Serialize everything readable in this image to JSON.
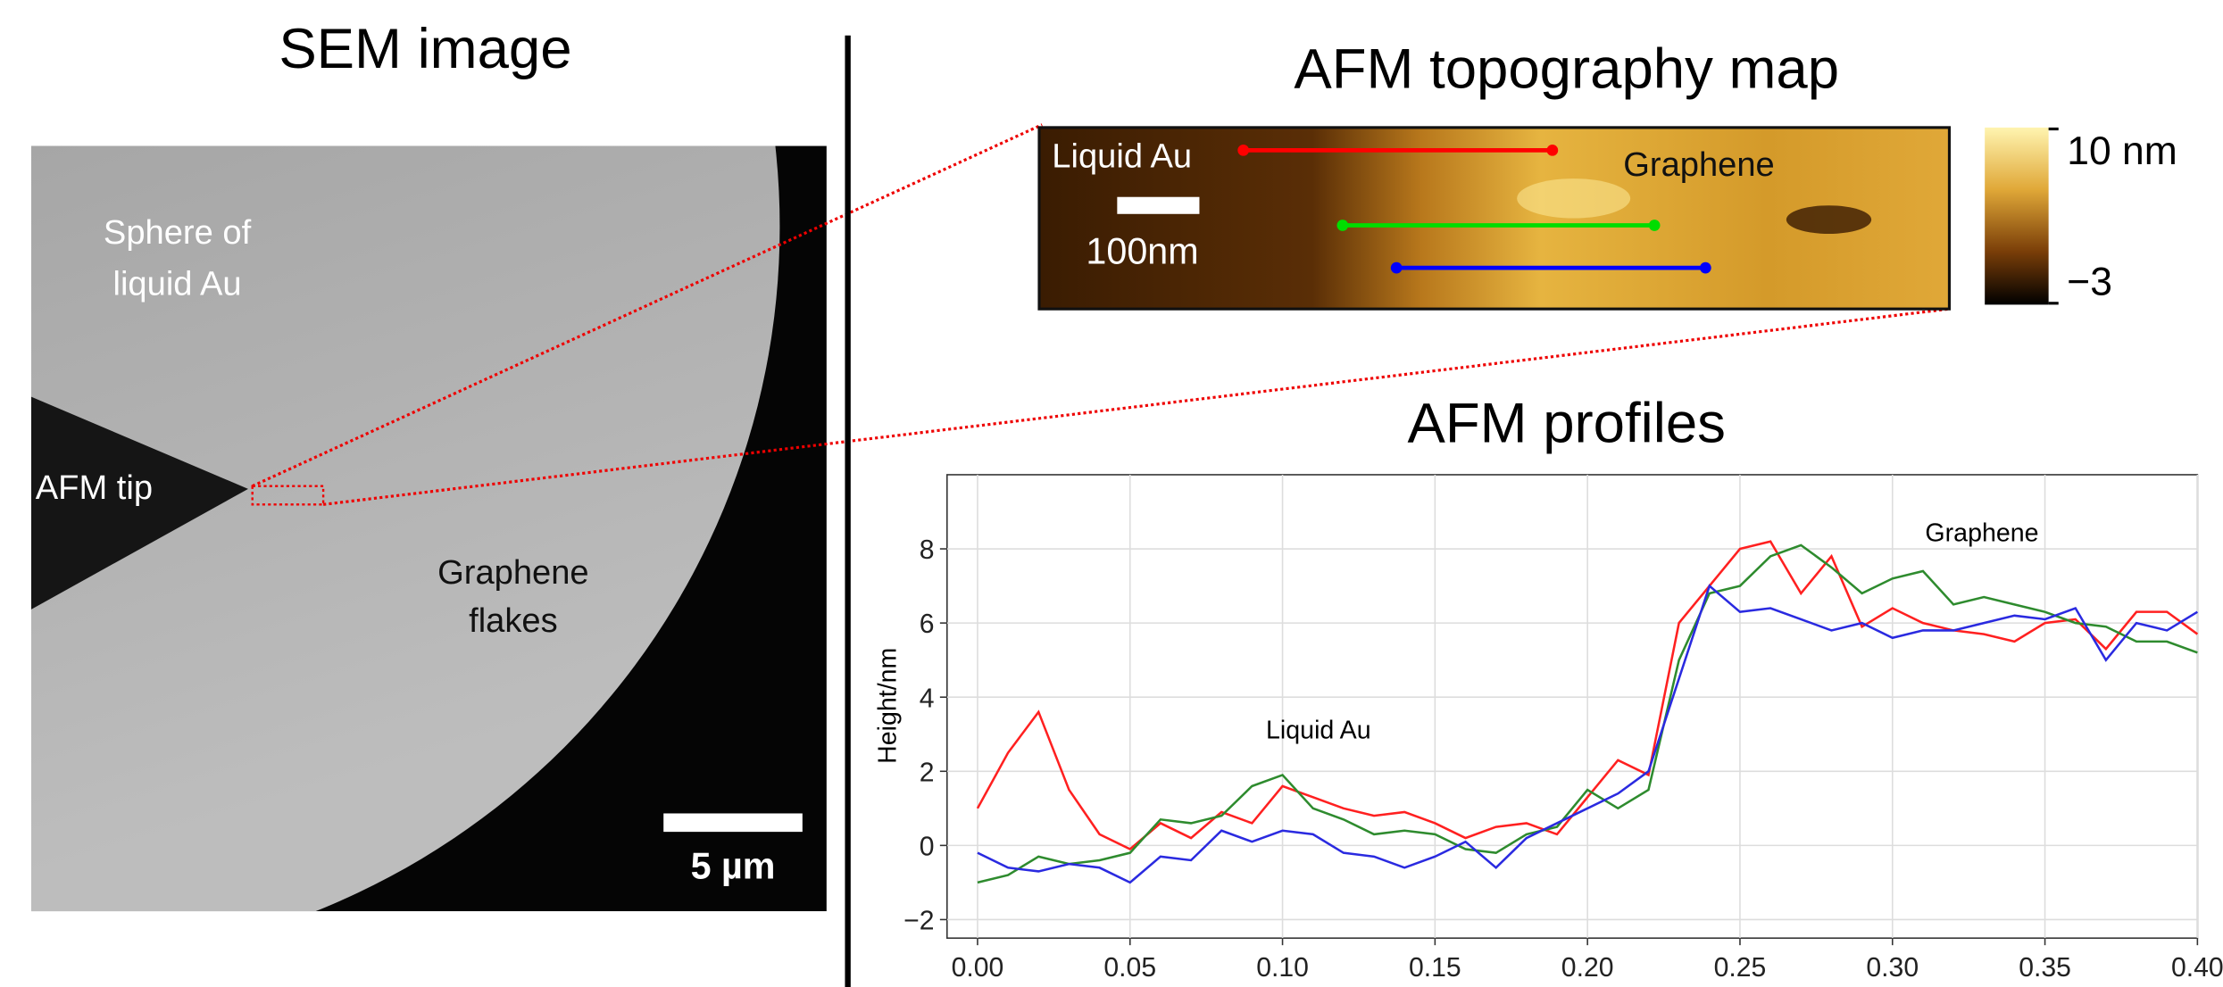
{
  "sem": {
    "title": "SEM image",
    "labels": [
      "Sphere of",
      "liquid Au",
      "AFM tip",
      "Graphene",
      "flakes"
    ],
    "scale_bar": "5 µm"
  },
  "afm_map": {
    "title": "AFM topography map",
    "labels": [
      "Liquid Au",
      "100nm",
      "Graphene"
    ],
    "colorbar_labels": [
      "10 nm",
      "−3"
    ]
  },
  "chart_data": {
    "type": "line",
    "title": "AFM profiles",
    "y_label": "Height/nm",
    "annotations": [
      "Graphene",
      "Liquid Au"
    ],
    "x": [
      0,
      0.01,
      0.02,
      0.03,
      0.04,
      0.05,
      0.06,
      0.07,
      0.08,
      0.09,
      0.1,
      0.11,
      0.12,
      0.13,
      0.14,
      0.15,
      0.16,
      0.17,
      0.18,
      0.19,
      0.2,
      0.21,
      0.22,
      0.23,
      0.24,
      0.25,
      0.26,
      0.27,
      0.28,
      0.29,
      0.3,
      0.31,
      0.32,
      0.33,
      0.34,
      0.35,
      0.36,
      0.37,
      0.38,
      0.39,
      0.4
    ],
    "series": [
      {
        "color": "#ff2020",
        "values": [
          1.0,
          2.5,
          3.6,
          1.5,
          0.3,
          -0.1,
          0.6,
          0.2,
          0.9,
          0.6,
          1.6,
          1.3,
          1.0,
          0.8,
          0.9,
          0.6,
          0.2,
          0.5,
          0.6,
          0.3,
          1.3,
          2.3,
          1.9,
          6.0,
          7.0,
          8.0,
          8.2,
          6.8,
          7.8,
          5.9,
          6.4,
          6.0,
          5.8,
          5.7,
          5.5,
          6.0,
          6.1,
          5.3,
          6.3,
          6.3,
          5.7
        ]
      },
      {
        "color": "#2e8b2e",
        "values": [
          -1.0,
          -0.8,
          -0.3,
          -0.5,
          -0.4,
          -0.2,
          0.7,
          0.6,
          0.8,
          1.6,
          1.9,
          1.0,
          0.7,
          0.3,
          0.4,
          0.3,
          -0.1,
          -0.2,
          0.3,
          0.5,
          1.5,
          1.0,
          1.5,
          5.0,
          6.8,
          7.0,
          7.8,
          8.1,
          7.5,
          6.8,
          7.2,
          7.4,
          6.5,
          6.7,
          6.5,
          6.3,
          6.0,
          5.9,
          5.5,
          5.5,
          5.2
        ]
      },
      {
        "color": "#2a2ae0",
        "values": [
          -0.2,
          -0.6,
          -0.7,
          -0.5,
          -0.6,
          -1.0,
          -0.3,
          -0.4,
          0.4,
          0.1,
          0.4,
          0.3,
          -0.2,
          -0.3,
          -0.6,
          -0.3,
          0.1,
          -0.6,
          0.2,
          0.6,
          1.0,
          1.4,
          2.0,
          4.5,
          7.0,
          6.3,
          6.4,
          6.1,
          5.8,
          6.0,
          5.6,
          5.8,
          5.8,
          6.0,
          6.2,
          6.1,
          6.4,
          5.0,
          6.0,
          5.8,
          6.3
        ]
      }
    ],
    "xlim": [
      -0.01,
      0.4
    ],
    "ylim": [
      -2.5,
      10
    ],
    "xticks": [
      {
        "value": 0,
        "label": "0.00"
      },
      0.05,
      {
        "value": 0.1,
        "label": "0.10"
      },
      0.15,
      {
        "value": 0.2,
        "label": "0.20"
      },
      0.25,
      {
        "value": 0.3,
        "label": "0.30"
      },
      0.35,
      {
        "value": 0.4,
        "label": "0.40"
      }
    ],
    "yticks": [
      {
        "value": -2,
        "label": "−2"
      },
      0,
      2,
      4,
      6,
      8
    ],
    "grid": true
  }
}
